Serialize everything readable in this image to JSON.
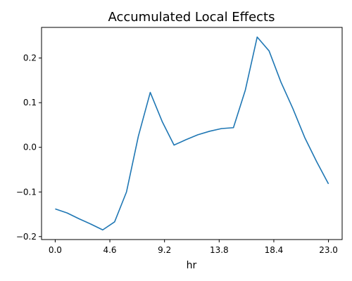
{
  "chart_data": {
    "type": "line",
    "title": "Accumulated Local Effects",
    "xlabel": "hr",
    "ylabel": "",
    "x": [
      0,
      1,
      2,
      3,
      4,
      5,
      6,
      7,
      8,
      9,
      10,
      11,
      12,
      13,
      14,
      15,
      16,
      17,
      18,
      19,
      20,
      21,
      22,
      23
    ],
    "series": [
      {
        "values": [
          -0.138,
          -0.147,
          -0.16,
          -0.172,
          -0.185,
          -0.167,
          -0.1,
          0.025,
          0.123,
          0.058,
          0.005,
          0.017,
          0.028,
          0.036,
          0.042,
          0.044,
          0.128,
          0.247,
          0.216,
          0.146,
          0.087,
          0.022,
          -0.032,
          -0.082
        ],
        "color": "#1f77b4"
      }
    ],
    "xticks": [
      0.0,
      4.6,
      9.2,
      13.8,
      18.4,
      23.0
    ],
    "xtick_labels": [
      "0.0",
      "4.6",
      "9.2",
      "13.8",
      "18.4",
      "23.0"
    ],
    "yticks": [
      -0.2,
      -0.1,
      0.0,
      0.1,
      0.2
    ],
    "ytick_labels": [
      "−0.2",
      "−0.1",
      "0.0",
      "0.1",
      "0.2"
    ],
    "xlim": [
      -1.15,
      24.15
    ],
    "ylim": [
      -0.2066,
      0.2686
    ],
    "grid": false,
    "legend": "none"
  }
}
